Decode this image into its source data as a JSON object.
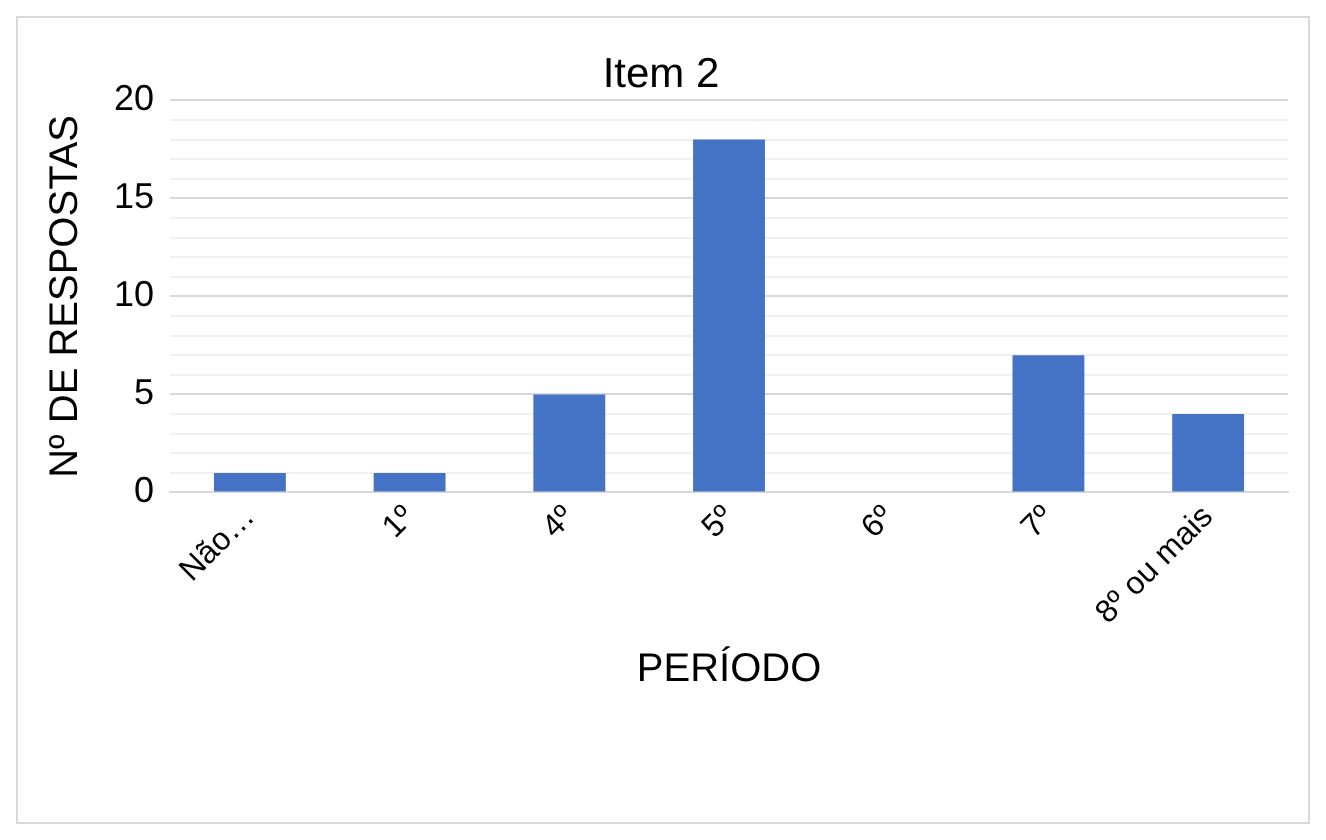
{
  "chart_data": {
    "type": "bar",
    "title": "Item 2",
    "xlabel": "PERÍODO",
    "ylabel": "Nº DE RESPOSTAS",
    "categories": [
      "Não…",
      "1º",
      "4º",
      "5º",
      "6º",
      "7º",
      "8º ou mais"
    ],
    "values": [
      1,
      1,
      5,
      18,
      0,
      7,
      4
    ],
    "color": "#4472c4",
    "ylim": [
      0,
      20
    ],
    "yticks": [
      0,
      {
        "value": 1,
        "label": null
      },
      {
        "value": 2,
        "label": null
      },
      {
        "value": 3,
        "label": null
      },
      {
        "value": 4,
        "label": null
      },
      5,
      {
        "value": 6,
        "label": null
      },
      {
        "value": 7,
        "label": null
      },
      {
        "value": 8,
        "label": null
      },
      {
        "value": 9,
        "label": null
      },
      10,
      {
        "value": 11,
        "label": null
      },
      {
        "value": 12,
        "label": null
      },
      {
        "value": 13,
        "label": null
      },
      {
        "value": 14,
        "label": null
      },
      15,
      {
        "value": 16,
        "label": null
      },
      {
        "value": 17,
        "label": null
      },
      {
        "value": 18,
        "label": null
      },
      {
        "value": 19,
        "label": null
      },
      20
    ],
    "grid": "y",
    "legend": false
  }
}
